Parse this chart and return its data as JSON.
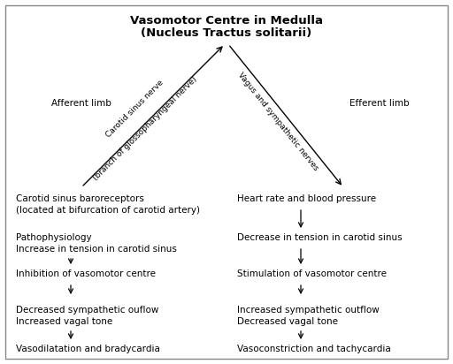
{
  "title_line1": "Vasomotor Centre in Medulla",
  "title_line2": "(Nucleus Tractus solitarii)",
  "background_color": "#ffffff",
  "border_color": "#888888",
  "text_color": "#000000",
  "afferent_label": "Afferent limb",
  "efferent_label": "Efferent limb",
  "afferent_nerve_line1": "Carotid sinus nerve",
  "afferent_nerve_line2": "(branch of glossopharyngeal nerve)",
  "efferent_nerve_label": "Vagus and sympathetic nerves",
  "left_col": [
    "Carotid sinus baroreceptors\n(located at bifurcation of carotid artery)",
    "Pathophysiology\nIncrease in tension in carotid sinus",
    "Inhibition of vasomotor centre",
    "Decreased sympathetic ouflow\nIncreased vagal tone",
    "Vasodilatation and bradycardia"
  ],
  "right_col": [
    "Heart rate and blood pressure",
    "Decrease in tension in carotid sinus",
    "Stimulation of vasomotor centre",
    "Increased sympathetic outflow\nDecreased vagal tone",
    "Vasoconstriction and tachycardia"
  ],
  "arrow_color": "#000000",
  "font_size": 7.5,
  "title_font_size": 9.5,
  "diagonal_font_size": 6.5
}
